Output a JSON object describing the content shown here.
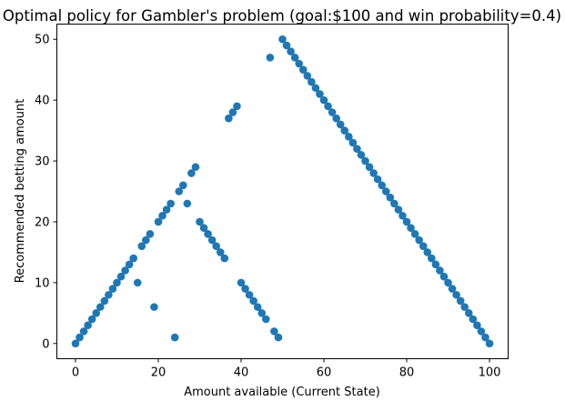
{
  "chart_data": {
    "type": "scatter",
    "title": "Optimal policy for Gambler's problem (goal:$100 and win probability=0.4)",
    "xlabel": "Amount available (Current State)",
    "ylabel": "Recommended betting amount",
    "xlim": [
      -4.5,
      104.5
    ],
    "ylim": [
      -2.5,
      52.5
    ],
    "xticks": [
      0,
      20,
      40,
      60,
      80,
      100
    ],
    "yticks": [
      0,
      10,
      20,
      30,
      40,
      50
    ],
    "grid": false,
    "marker_color": "#1f77b4",
    "x": [
      0,
      1,
      2,
      3,
      4,
      5,
      6,
      7,
      8,
      9,
      10,
      11,
      12,
      13,
      14,
      15,
      16,
      17,
      18,
      19,
      20,
      21,
      22,
      23,
      24,
      25,
      26,
      27,
      28,
      29,
      30,
      31,
      32,
      33,
      34,
      35,
      36,
      37,
      38,
      39,
      40,
      41,
      42,
      43,
      44,
      45,
      46,
      47,
      48,
      49,
      50,
      51,
      52,
      53,
      54,
      55,
      56,
      57,
      58,
      59,
      60,
      61,
      62,
      63,
      64,
      65,
      66,
      67,
      68,
      69,
      70,
      71,
      72,
      73,
      74,
      75,
      76,
      77,
      78,
      79,
      80,
      81,
      82,
      83,
      84,
      85,
      86,
      87,
      88,
      89,
      90,
      91,
      92,
      93,
      94,
      95,
      96,
      97,
      98,
      99,
      100
    ],
    "y": [
      0,
      1,
      2,
      3,
      4,
      5,
      6,
      7,
      8,
      9,
      10,
      11,
      12,
      13,
      14,
      10,
      16,
      17,
      18,
      6,
      20,
      21,
      22,
      23,
      1,
      25,
      26,
      23,
      28,
      29,
      20,
      19,
      18,
      17,
      16,
      15,
      14,
      37,
      38,
      39,
      10,
      9,
      8,
      7,
      6,
      5,
      4,
      47,
      2,
      1,
      50,
      49,
      48,
      47,
      46,
      45,
      44,
      43,
      42,
      41,
      40,
      39,
      38,
      37,
      36,
      35,
      34,
      33,
      32,
      31,
      30,
      29,
      28,
      27,
      26,
      25,
      24,
      23,
      22,
      21,
      20,
      19,
      18,
      17,
      16,
      15,
      14,
      13,
      12,
      11,
      10,
      9,
      8,
      7,
      6,
      5,
      4,
      3,
      2,
      1,
      0
    ]
  }
}
